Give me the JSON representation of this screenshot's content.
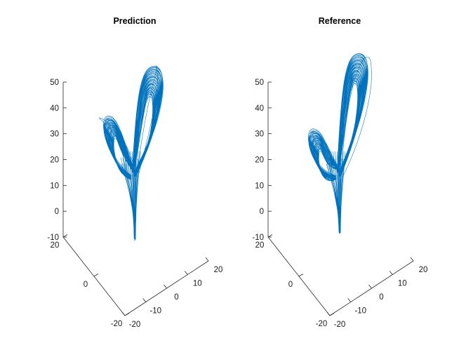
{
  "chart_data": [
    {
      "type": "line",
      "title": "Prediction",
      "projection": "3d",
      "xlim": [
        -20,
        20
      ],
      "ylim": [
        -20,
        20
      ],
      "zlim": [
        -10,
        50
      ],
      "x_ticks": [
        "-20",
        "-10",
        "0",
        "10",
        "20"
      ],
      "y_ticks": [
        "-20",
        "0",
        "20"
      ],
      "z_ticks": [
        "-10",
        "0",
        "10",
        "20",
        "30",
        "40",
        "50"
      ],
      "grid": false,
      "color": "#0072BD",
      "series": [
        {
          "lobe_peaks_z": [
            37,
            56
          ],
          "x_range": [
            -17,
            18
          ],
          "z_range": [
            -10,
            56
          ]
        }
      ]
    },
    {
      "type": "line",
      "title": "Reference",
      "projection": "3d",
      "xlim": [
        -20,
        20
      ],
      "ylim": [
        -20,
        20
      ],
      "zlim": [
        -10,
        50
      ],
      "x_ticks": [
        "-20",
        "-10",
        "0",
        "10",
        "20"
      ],
      "y_ticks": [
        "-20",
        "0",
        "20"
      ],
      "z_ticks": [
        "-10",
        "0",
        "10",
        "20",
        "30",
        "40",
        "50"
      ],
      "grid": false,
      "color": "#0072BD",
      "series": [
        {
          "lobe_peaks_z": [
            32,
            61
          ],
          "x_range": [
            -17,
            18
          ],
          "z_range": [
            -8,
            61
          ]
        }
      ]
    }
  ]
}
